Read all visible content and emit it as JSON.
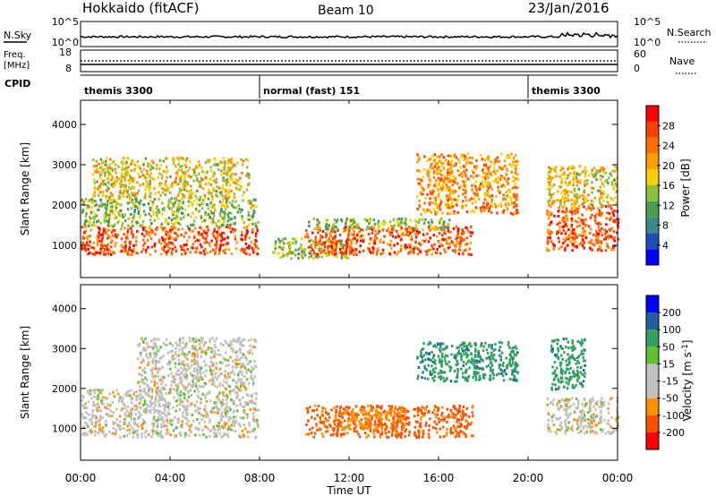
{
  "header": {
    "station": "Hokkaido (fitACF)",
    "beam": "Beam 10",
    "date": "23/Jan/2016"
  },
  "noise_panel": {
    "left_label": "N.Sky",
    "right_label": "N.Search",
    "left_ticks": [
      "10^5",
      "10^0"
    ],
    "right_ticks": [
      "10^5",
      "10^0"
    ]
  },
  "freq_panel": {
    "left_label_1": "Freq.",
    "left_label_2": "[MHz]",
    "right_label": "Nave",
    "left_ticks": [
      "18",
      "8"
    ],
    "right_ticks": [
      "60",
      "0"
    ]
  },
  "cpid": {
    "label": "CPID",
    "segments": [
      {
        "start_h": 0,
        "end_h": 8,
        "text": "themis 3300"
      },
      {
        "start_h": 8,
        "end_h": 20,
        "text": "normal (fast) 151"
      },
      {
        "start_h": 20,
        "end_h": 24,
        "text": "themis 3300"
      }
    ]
  },
  "colorbars": {
    "power": {
      "label": "Power [dB]",
      "ticks": [
        "28",
        "24",
        "20",
        "16",
        "12",
        "8",
        "4"
      ],
      "colors": [
        "#0000ff",
        "#1c50b4",
        "#3a8a8a",
        "#4aa050",
        "#88c040",
        "#ffd000",
        "#ffa000",
        "#ff7000",
        "#ff4000",
        "#ff0000"
      ]
    },
    "velocity": {
      "label": "Velocity [m s",
      "label_sup": "-1",
      "label_end": "]",
      "ticks": [
        "200",
        "100",
        "50",
        "15",
        "-15",
        "-50",
        "-100",
        "-200"
      ],
      "colors": [
        "#ff0000",
        "#ff5000",
        "#ff9000",
        "#c0c0c0",
        "#c0c0c0",
        "#60c030",
        "#30a060",
        "#2060a0",
        "#0000ff"
      ]
    }
  },
  "chart_data": {
    "type": "heatmap",
    "xlabel": "Time UT",
    "x_ticks": [
      "00:00",
      "04:00",
      "08:00",
      "12:00",
      "16:00",
      "20:00",
      "00:00"
    ],
    "x_range_hours": [
      0,
      24
    ],
    "ylabel": "Slant Range [km]",
    "y_ticks": [
      1000,
      2000,
      3000,
      4000
    ],
    "ylim": [
      200,
      4600
    ],
    "panels": [
      {
        "name": "Power",
        "regions": [
          {
            "t0": 0.0,
            "t1": 7.9,
            "r_lo": 800,
            "r_hi": 1500,
            "level": 26
          },
          {
            "t0": 0.0,
            "t1": 7.9,
            "r_lo": 1500,
            "r_hi": 2200,
            "level": 14
          },
          {
            "t0": 0.5,
            "t1": 7.5,
            "r_lo": 2200,
            "r_hi": 3200,
            "level": 18
          },
          {
            "t0": 8.5,
            "t1": 12.0,
            "r_lo": 700,
            "r_hi": 1200,
            "level": 15
          },
          {
            "t0": 10.0,
            "t1": 17.5,
            "r_lo": 800,
            "r_hi": 1500,
            "level": 26
          },
          {
            "t0": 10.0,
            "t1": 16.5,
            "r_lo": 1400,
            "r_hi": 1700,
            "level": 14
          },
          {
            "t0": 15.0,
            "t1": 19.5,
            "r_lo": 1800,
            "r_hi": 3300,
            "level": 22
          },
          {
            "t0": 20.8,
            "t1": 24.0,
            "r_lo": 900,
            "r_hi": 2000,
            "level": 26
          },
          {
            "t0": 20.8,
            "t1": 24.0,
            "r_lo": 2000,
            "r_hi": 3000,
            "level": 18
          }
        ]
      },
      {
        "name": "Velocity",
        "regions": [
          {
            "t0": 0.0,
            "t1": 7.9,
            "r_lo": 800,
            "r_hi": 2000,
            "level": 0
          },
          {
            "t0": 2.5,
            "t1": 7.8,
            "r_lo": 2000,
            "r_hi": 3300,
            "level": 0
          },
          {
            "t0": 10.0,
            "t1": 17.5,
            "r_lo": 800,
            "r_hi": 1600,
            "level": -60
          },
          {
            "t0": 11.5,
            "t1": 14.5,
            "r_lo": 1000,
            "r_hi": 1500,
            "level": -40
          },
          {
            "t0": 15.0,
            "t1": 19.5,
            "r_lo": 2200,
            "r_hi": 3200,
            "level": 60
          },
          {
            "t0": 20.8,
            "t1": 24.0,
            "r_lo": 900,
            "r_hi": 1800,
            "level": 0
          },
          {
            "t0": 21.0,
            "t1": 22.5,
            "r_lo": 2000,
            "r_hi": 3300,
            "level": 60
          }
        ]
      }
    ]
  }
}
